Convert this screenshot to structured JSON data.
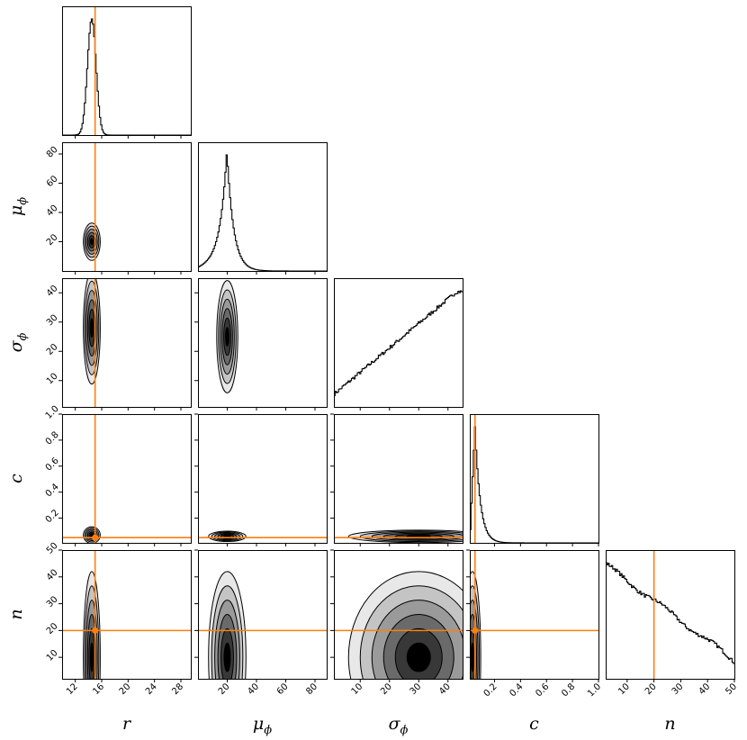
{
  "chart_data": {
    "type": "corner",
    "colors": {
      "truth": "#ff7f0e",
      "line": "#000000",
      "levels": [
        "#e8e8e8",
        "#c4c4c4",
        "#9a9a9a",
        "#6a6a6a",
        "#383838",
        "#000000"
      ]
    },
    "grid": false,
    "parameters": [
      {
        "key": "r",
        "base": "r",
        "sub": "",
        "range": [
          10,
          29.5
        ],
        "ticks": [
          12,
          16,
          20,
          24,
          28
        ],
        "truth": 15
      },
      {
        "key": "mu_phi",
        "base": "μ",
        "sub": "ϕ",
        "range": [
          0,
          88
        ],
        "ticks": [
          20,
          40,
          60,
          80
        ],
        "truth": null
      },
      {
        "key": "sigma_phi",
        "base": "σ",
        "sub": "ϕ",
        "range": [
          1,
          45
        ],
        "ticks": [
          10,
          20,
          30,
          40
        ],
        "truth": null
      },
      {
        "key": "c",
        "base": "c",
        "sub": "",
        "range": [
          0.01,
          1.0
        ],
        "ticks": [
          0.2,
          0.4,
          0.6,
          0.8,
          1.0
        ],
        "tick_labels": [
          "0.2",
          "0.4",
          "0.6",
          "0.8",
          "1.0"
        ],
        "truth": 0.05
      },
      {
        "key": "n",
        "base": "n",
        "sub": "",
        "range": [
          2,
          50
        ],
        "ticks": [
          10,
          20,
          30,
          40,
          50
        ],
        "truth": 20
      }
    ],
    "marginals": [
      {
        "param": "r",
        "type": "histogram",
        "shape": "gaussian",
        "peak": 14.5,
        "std": 0.65
      },
      {
        "param": "mu_phi",
        "type": "histogram",
        "shape": "laplace",
        "peak": 20,
        "scale": 4.5,
        "tail_floor": 0.1
      },
      {
        "param": "sigma_phi",
        "type": "histogram",
        "shape": "linear_increasing",
        "from": [
          1,
          0.1
        ],
        "to": [
          43,
          0.92
        ]
      },
      {
        "param": "c",
        "type": "histogram",
        "shape": "skewed",
        "peak": 0.05,
        "decay": 0.04
      },
      {
        "param": "n",
        "type": "histogram",
        "shape": "linear_decreasing",
        "from": [
          2,
          0.95
        ],
        "to": [
          50,
          0.15
        ]
      }
    ],
    "pairs": [
      {
        "x": "r",
        "y": "mu_phi",
        "blobs": [
          {
            "cx": 14.5,
            "cy": 20,
            "sx": 0.8,
            "sy": 8
          }
        ]
      },
      {
        "x": "r",
        "y": "sigma_phi",
        "blobs": [
          {
            "cx": 14.5,
            "cy": 28,
            "sx": 0.8,
            "sy": 12
          }
        ]
      },
      {
        "x": "mu_phi",
        "y": "sigma_phi",
        "blobs": [
          {
            "cx": 20,
            "cy": 25,
            "sx": 4.5,
            "sy": 12
          }
        ]
      },
      {
        "x": "r",
        "y": "c",
        "blobs": [
          {
            "cx": 14.5,
            "cy": 0.07,
            "sx": 0.8,
            "sy": 0.04
          }
        ]
      },
      {
        "x": "mu_phi",
        "y": "c",
        "blobs": [
          {
            "cx": 20,
            "cy": 0.06,
            "sx": 8,
            "sy": 0.025
          }
        ]
      },
      {
        "x": "sigma_phi",
        "y": "c",
        "blobs": [
          {
            "cx": 30,
            "cy": 0.06,
            "sx": 15,
            "sy": 0.03
          }
        ]
      },
      {
        "x": "r",
        "y": "n",
        "blobs": [
          {
            "cx": 14.5,
            "cy": 10,
            "sx": 0.8,
            "sy": 20
          }
        ]
      },
      {
        "x": "mu_phi",
        "y": "n",
        "blobs": [
          {
            "cx": 20,
            "cy": 10,
            "sx": 8,
            "sy": 20
          }
        ]
      },
      {
        "x": "sigma_phi",
        "y": "n",
        "blobs": [
          {
            "cx": 30,
            "cy": 10,
            "sx": 15,
            "sy": 20
          }
        ]
      },
      {
        "x": "c",
        "y": "n",
        "blobs": [
          {
            "cx": 0.03,
            "cy": 10,
            "sx": 0.04,
            "sy": 20
          }
        ]
      }
    ]
  }
}
